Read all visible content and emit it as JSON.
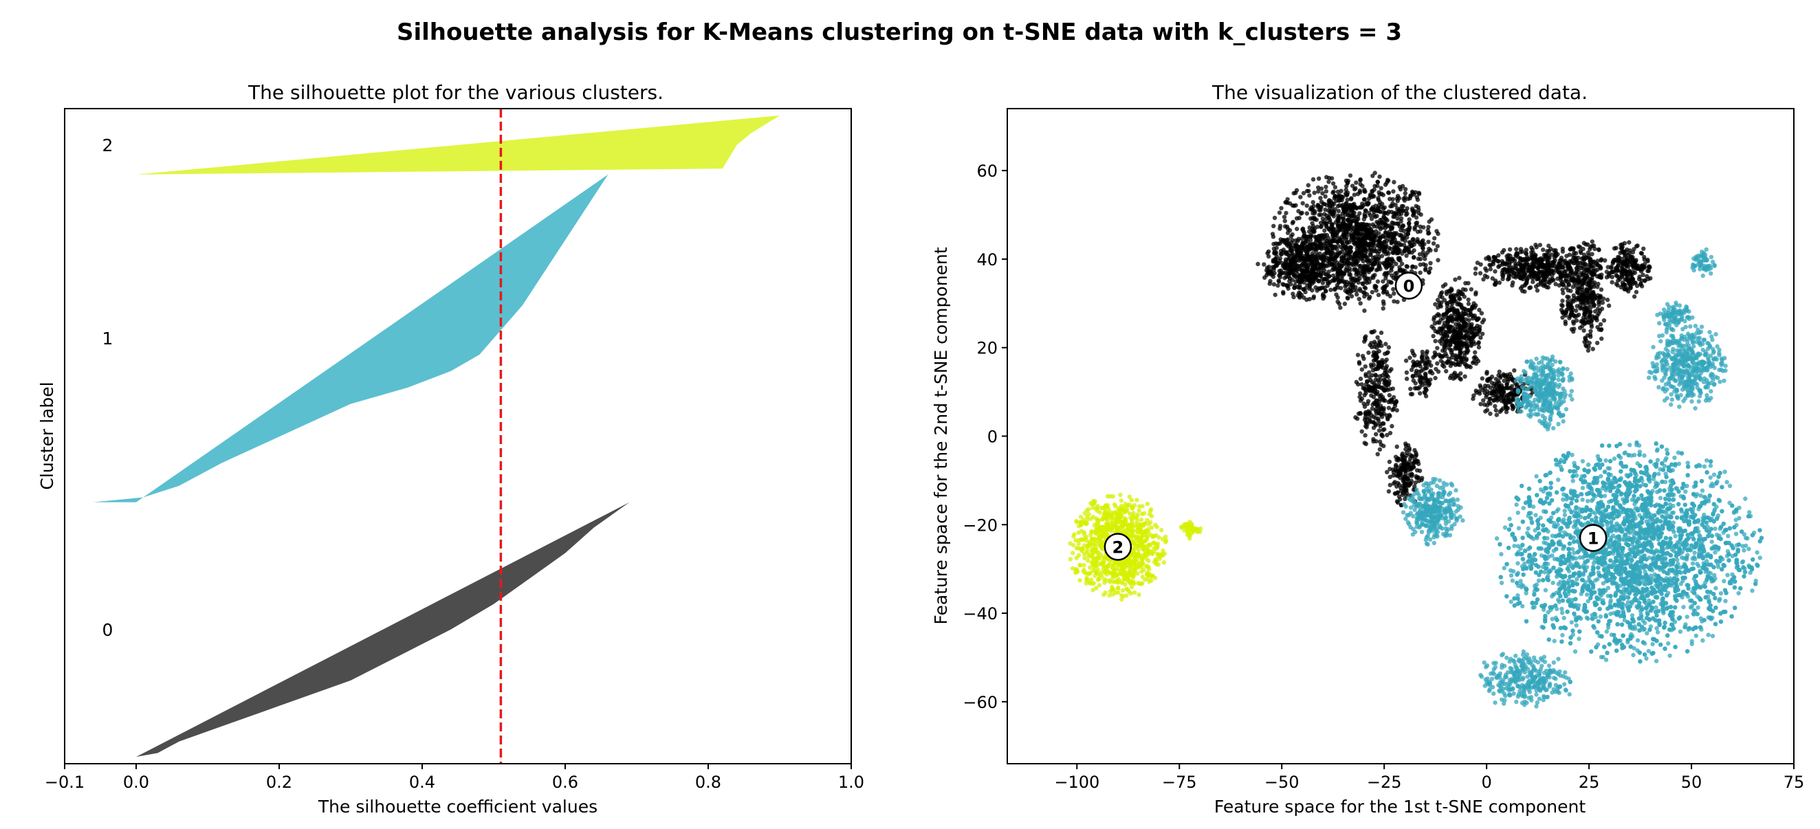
{
  "figure": {
    "title": "Silhouette analysis for K-Means clustering on t-SNE data with k_clusters = 3"
  },
  "chart_data": [
    {
      "type": "area",
      "title": "The silhouette plot for the various clusters.",
      "xlabel": "The silhouette coefficient values",
      "ylabel": "Cluster label",
      "xlim": [
        -0.1,
        1.0
      ],
      "xticks": [
        -0.1,
        0.0,
        0.2,
        0.4,
        0.6,
        0.8,
        1.0
      ],
      "xtick_labels": [
        "−0.1",
        "0.0",
        "0.2",
        "0.4",
        "0.6",
        "0.8",
        "1.0"
      ],
      "yticks": [],
      "grid": false,
      "average_silhouette_score": 0.51,
      "average_line_color": "#e41a1c",
      "clusters": [
        {
          "label": "0",
          "color": "#4d4d4d",
          "size_share": 0.397,
          "profile": [
            [
              0.0,
              0.69
            ],
            [
              0.04,
              0.67
            ],
            [
              0.1,
              0.64
            ],
            [
              0.2,
              0.6
            ],
            [
              0.3,
              0.55
            ],
            [
              0.4,
              0.5
            ],
            [
              0.5,
              0.44
            ],
            [
              0.6,
              0.37
            ],
            [
              0.7,
              0.3
            ],
            [
              0.8,
              0.2
            ],
            [
              0.88,
              0.12
            ],
            [
              0.94,
              0.06
            ],
            [
              0.985,
              0.03
            ],
            [
              1.0,
              0.0
            ]
          ]
        },
        {
          "label": "1",
          "color": "#5bbfcf",
          "size_share": 0.511,
          "profile": [
            [
              0.0,
              0.66
            ],
            [
              0.1,
              0.63
            ],
            [
              0.2,
              0.6
            ],
            [
              0.3,
              0.57
            ],
            [
              0.4,
              0.54
            ],
            [
              0.5,
              0.5
            ],
            [
              0.55,
              0.48
            ],
            [
              0.6,
              0.44
            ],
            [
              0.65,
              0.38
            ],
            [
              0.7,
              0.3
            ],
            [
              0.8,
              0.2
            ],
            [
              0.88,
              0.12
            ],
            [
              0.95,
              0.06
            ],
            [
              0.985,
              0.01
            ],
            [
              1.0,
              -0.06
            ]
          ]
        },
        {
          "label": "2",
          "color": "#dff542",
          "size_share": 0.092,
          "profile": [
            [
              0.0,
              0.9
            ],
            [
              0.3,
              0.86
            ],
            [
              0.5,
              0.84
            ],
            [
              0.7,
              0.83
            ],
            [
              0.9,
              0.82
            ],
            [
              1.0,
              0.0
            ]
          ]
        }
      ]
    },
    {
      "type": "scatter",
      "title": "The visualization of the clustered data.",
      "xlabel": "Feature space for the 1st t-SNE component",
      "ylabel": "Feature space for the 2nd t-SNE component",
      "xlim": [
        -117,
        75
      ],
      "ylim": [
        -74,
        74
      ],
      "xticks": [
        -100,
        -75,
        -50,
        -25,
        0,
        25,
        50,
        75
      ],
      "xtick_labels": [
        "−100",
        "−75",
        "−50",
        "−25",
        "0",
        "25",
        "50",
        "75"
      ],
      "yticks": [
        -60,
        -40,
        -20,
        0,
        20,
        40,
        60
      ],
      "ytick_labels": [
        "−60",
        "−40",
        "−20",
        "0",
        "20",
        "40",
        "60"
      ],
      "grid": false,
      "clusters": [
        {
          "label": "0",
          "color": "#000000",
          "center": [
            -19,
            34
          ],
          "blobs": [
            {
              "cx": -32,
              "cy": 44,
              "rx": 19,
              "ry": 15,
              "n": 1500
            },
            {
              "cx": -45,
              "cy": 38,
              "rx": 10,
              "ry": 7,
              "n": 350
            },
            {
              "cx": -27,
              "cy": 10,
              "rx": 5,
              "ry": 13,
              "n": 280
            },
            {
              "cx": -16,
              "cy": 14,
              "rx": 4,
              "ry": 6,
              "n": 90
            },
            {
              "cx": -7,
              "cy": 24,
              "rx": 6,
              "ry": 11,
              "n": 450
            },
            {
              "cx": 12,
              "cy": 38,
              "rx": 14,
              "ry": 5,
              "n": 450
            },
            {
              "cx": 24,
              "cy": 32,
              "rx": 6,
              "ry": 12,
              "n": 350
            },
            {
              "cx": 35,
              "cy": 38,
              "rx": 5,
              "ry": 6,
              "n": 200
            },
            {
              "cx": 4,
              "cy": 10,
              "rx": 7,
              "ry": 5,
              "n": 200
            },
            {
              "cx": -20,
              "cy": -9,
              "rx": 4,
              "ry": 7,
              "n": 170
            }
          ]
        },
        {
          "label": "1",
          "color": "#34a7bc",
          "center": [
            26,
            -23
          ],
          "blobs": [
            {
              "cx": 35,
              "cy": -26,
              "rx": 30,
              "ry": 23,
              "n": 3800
            },
            {
              "cx": -13,
              "cy": -17,
              "rx": 7,
              "ry": 7,
              "n": 320
            },
            {
              "cx": 14,
              "cy": 10,
              "rx": 7,
              "ry": 8,
              "n": 350
            },
            {
              "cx": 49,
              "cy": 16,
              "rx": 9,
              "ry": 9,
              "n": 450
            },
            {
              "cx": 46,
              "cy": 27,
              "rx": 4,
              "ry": 3,
              "n": 90
            },
            {
              "cx": 53,
              "cy": 39,
              "rx": 3,
              "ry": 3,
              "n": 60
            },
            {
              "cx": 10,
              "cy": -55,
              "rx": 12,
              "ry": 6,
              "n": 300
            }
          ]
        },
        {
          "label": "2",
          "color": "#d6f000",
          "center": [
            -90,
            -25
          ],
          "blobs": [
            {
              "cx": -90,
              "cy": -25,
              "rx": 11,
              "ry": 11,
              "n": 950
            },
            {
              "cx": -72,
              "cy": -21,
              "rx": 2.5,
              "ry": 2,
              "n": 40
            }
          ]
        }
      ]
    }
  ]
}
